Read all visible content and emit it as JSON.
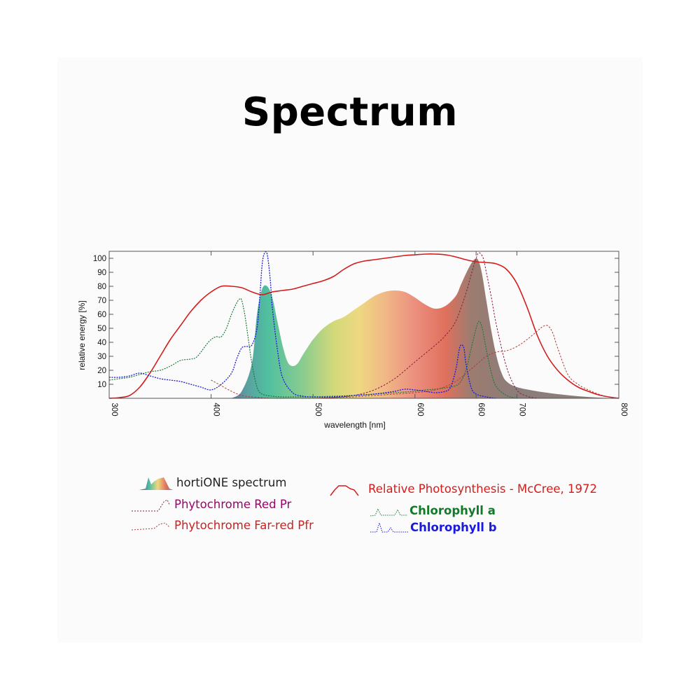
{
  "page": {
    "title": "Spectrum"
  },
  "colors": {
    "background": "#fbfbfb",
    "photosynthesis": "#d41c1c",
    "phytochrome_red": "#8c1a3c",
    "phytochrome_far_red": "#b03a3a",
    "chlorophyll_a": "#1e7a3a",
    "chlorophyll_b": "#1a1adc",
    "legend_red_pr": "#a0006e",
    "legend_far_red": "#d41c1c",
    "legend_chl_a": "#137a2a",
    "legend_chl_b": "#1a1adc"
  },
  "legend": {
    "hortione": "hortiONE spectrum",
    "red_pr": "Phytochrome Red Pr",
    "far_red_pfr": "Phytochrome Far-red Pfr",
    "photosynthesis": "Relative Photosynthesis - McCree, 1972",
    "chl_a": "Chlorophyll a",
    "chl_b": "Chlorophyll b"
  },
  "chart_data": {
    "type": "area",
    "xlabel": "wavelength [nm]",
    "ylabel": "relative energy [%]",
    "xlim": [
      300,
      800
    ],
    "ylim": [
      0,
      105
    ],
    "x_ticks": [
      300,
      400,
      500,
      600,
      660,
      700,
      800
    ],
    "x_tick_labels": [
      "300",
      "400",
      "500",
      "600",
      "660",
      "700",
      "800"
    ],
    "y_ticks": [
      10,
      20,
      30,
      40,
      50,
      60,
      70,
      80,
      90,
      100
    ],
    "y_tick_labels": [
      "10",
      "20",
      "30",
      "40",
      "50",
      "60",
      "70",
      "80",
      "90",
      "100"
    ],
    "grid": false,
    "series": [
      {
        "name": "hortiONE spectrum",
        "style": "gradient-area",
        "x": [
          420,
          430,
          440,
          445,
          450,
          455,
          460,
          465,
          470,
          475,
          480,
          485,
          490,
          500,
          510,
          520,
          530,
          540,
          550,
          560,
          570,
          580,
          590,
          600,
          610,
          620,
          630,
          640,
          645,
          650,
          655,
          660,
          663,
          666,
          670,
          675,
          680,
          685,
          690,
          700,
          720,
          740,
          760,
          780,
          800
        ],
        "y": [
          0,
          5,
          25,
          60,
          78,
          80,
          72,
          55,
          38,
          26,
          23,
          25,
          31,
          42,
          50,
          55,
          58,
          63,
          68,
          73,
          76,
          77,
          76,
          72,
          67,
          64,
          66,
          73,
          81,
          89,
          96,
          100,
          97,
          88,
          70,
          48,
          30,
          18,
          12,
          8,
          5,
          3,
          1.5,
          0.5,
          0
        ]
      },
      {
        "name": "Relative Photosynthesis - McCree, 1972",
        "style": "solid",
        "x": [
          300,
          310,
          320,
          330,
          340,
          350,
          360,
          370,
          380,
          390,
          400,
          410,
          420,
          430,
          440,
          450,
          460,
          470,
          480,
          490,
          500,
          510,
          520,
          530,
          540,
          550,
          560,
          570,
          580,
          590,
          600,
          610,
          620,
          630,
          640,
          650,
          660,
          670,
          680,
          690,
          700,
          710,
          720,
          730,
          740,
          750,
          760,
          770,
          780,
          790,
          800
        ],
        "y": [
          0,
          0.5,
          2,
          8,
          18,
          30,
          42,
          52,
          62,
          70,
          76,
          80,
          80,
          79,
          76,
          74,
          76,
          77,
          78,
          80,
          82,
          84,
          87,
          92,
          96,
          98,
          99,
          100,
          101,
          102,
          102.5,
          103,
          103,
          102.5,
          101,
          99,
          97.5,
          97,
          96,
          92,
          82,
          65,
          45,
          30,
          20,
          13,
          8,
          5,
          2.5,
          1,
          0
        ]
      },
      {
        "name": "Phytochrome Red Pr",
        "style": "dashed",
        "x": [
          500,
          520,
          540,
          560,
          580,
          600,
          620,
          630,
          640,
          650,
          655,
          660,
          663,
          667,
          670,
          675,
          680,
          690,
          700,
          710,
          720
        ],
        "y": [
          0,
          0.5,
          2,
          6,
          14,
          26,
          38,
          45,
          55,
          75,
          88,
          100,
          104,
          100,
          90,
          72,
          52,
          22,
          6,
          1.5,
          0
        ]
      },
      {
        "name": "Phytochrome Far-red Pfr",
        "style": "dashed",
        "x": [
          400,
          410,
          420,
          430,
          440,
          460,
          480,
          500,
          520,
          540,
          560,
          580,
          600,
          620,
          640,
          660,
          670,
          680,
          690,
          700,
          710,
          720,
          725,
          730,
          735,
          740,
          750,
          760,
          770,
          780,
          790,
          800
        ],
        "y": [
          13,
          9,
          5,
          2,
          1,
          0,
          0,
          0,
          0.5,
          1,
          2,
          3,
          4,
          6,
          12,
          24,
          30,
          33,
          34,
          37,
          42,
          48,
          51,
          52,
          47,
          36,
          17,
          10,
          6,
          3,
          1,
          0
        ]
      },
      {
        "name": "Chlorophyll a",
        "style": "dotted",
        "x": [
          300,
          310,
          320,
          330,
          340,
          350,
          360,
          370,
          380,
          385,
          390,
          395,
          400,
          405,
          410,
          415,
          420,
          425,
          428,
          430,
          433,
          436,
          440,
          445,
          450,
          460,
          470,
          480,
          500,
          520,
          540,
          560,
          580,
          600,
          610,
          620,
          630,
          640,
          645,
          650,
          655,
          660,
          663,
          666,
          670,
          675,
          680,
          690,
          700
        ],
        "y": [
          13,
          14,
          15,
          17,
          19,
          20,
          23,
          27,
          28,
          29,
          33,
          38,
          42,
          44,
          44,
          50,
          60,
          68,
          71,
          70,
          60,
          45,
          25,
          8,
          3,
          1.5,
          1,
          1,
          1,
          1.5,
          2,
          3,
          4,
          5,
          6,
          6.5,
          7.5,
          9,
          12,
          20,
          35,
          50,
          55,
          50,
          35,
          18,
          8,
          2,
          0
        ]
      },
      {
        "name": "Chlorophyll b",
        "style": "dotted",
        "x": [
          300,
          310,
          320,
          330,
          340,
          350,
          360,
          370,
          380,
          390,
          400,
          410,
          420,
          425,
          430,
          435,
          440,
          445,
          448,
          450,
          452,
          455,
          458,
          460,
          465,
          470,
          480,
          490,
          500,
          520,
          540,
          560,
          580,
          590,
          600,
          610,
          620,
          630,
          635,
          640,
          643,
          645,
          648,
          650,
          655,
          660,
          670,
          680
        ],
        "y": [
          15,
          15,
          16,
          18,
          16,
          14,
          13,
          12,
          10,
          8,
          6,
          10,
          18,
          28,
          36,
          37,
          38,
          50,
          75,
          95,
          103,
          103,
          85,
          65,
          35,
          15,
          4,
          1.5,
          1,
          1,
          2,
          3,
          5,
          6.5,
          6,
          5,
          4,
          5,
          8,
          20,
          33,
          38,
          36,
          25,
          8,
          3,
          1,
          0
        ]
      }
    ]
  }
}
